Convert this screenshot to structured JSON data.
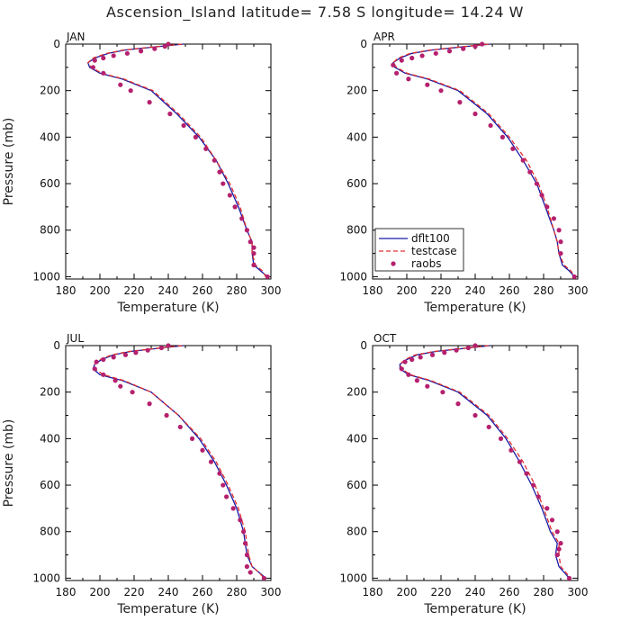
{
  "figure": {
    "title": "Ascension_Island   latitude= 7.58 S longitude= 14.24 W"
  },
  "colors": {
    "dflt100": "#1a1aa6",
    "testcase": "#e03030",
    "raobs": "#b5206e",
    "axes": "#000000"
  },
  "legend": {
    "panel": "APR",
    "entries": [
      {
        "label": "dflt100",
        "style": "solid"
      },
      {
        "label": "testcase",
        "style": "dashed"
      },
      {
        "label": "raobs",
        "style": "dots"
      }
    ]
  },
  "chart_data": [
    {
      "type": "line",
      "panel": "JAN",
      "xlabel": "Temperature (K)",
      "ylabel": "Pressure (mb)",
      "xlim": [
        180,
        300
      ],
      "ylim": [
        1010,
        0
      ],
      "xticks": [
        180,
        200,
        220,
        240,
        260,
        280,
        300
      ],
      "yticks": [
        0,
        200,
        400,
        600,
        800,
        1000
      ],
      "series": [
        {
          "name": "dflt100",
          "x": [
            249,
            235,
            215,
            205,
            197,
            193,
            194,
            200,
            213,
            230,
            245,
            258,
            268,
            275,
            281,
            286,
            289,
            289,
            290,
            294,
            298
          ],
          "y": [
            0,
            10,
            25,
            40,
            60,
            80,
            100,
            125,
            150,
            200,
            300,
            400,
            500,
            600,
            700,
            800,
            850,
            900,
            950,
            975,
            1000
          ]
        },
        {
          "name": "testcase",
          "x": [
            248,
            234,
            214,
            204,
            196,
            193,
            195,
            201,
            214,
            231,
            246,
            259,
            268,
            276,
            282,
            286,
            289,
            289,
            291,
            295,
            297
          ],
          "y": [
            0,
            10,
            25,
            40,
            60,
            80,
            100,
            125,
            150,
            200,
            300,
            400,
            500,
            600,
            700,
            800,
            850,
            900,
            950,
            975,
            1000
          ]
        },
        {
          "name": "raobs",
          "x": [
            240,
            238,
            232,
            224,
            216,
            208,
            202,
            197,
            196,
            202,
            212,
            218,
            229,
            241,
            249,
            256,
            262,
            267,
            270,
            272,
            276,
            279,
            283,
            286,
            288,
            290,
            290,
            290,
            298
          ],
          "y": [
            0,
            10,
            20,
            30,
            40,
            50,
            60,
            70,
            100,
            125,
            175,
            200,
            250,
            300,
            350,
            400,
            450,
            500,
            550,
            600,
            650,
            700,
            750,
            800,
            850,
            875,
            900,
            950,
            1000
          ]
        }
      ]
    },
    {
      "type": "line",
      "panel": "APR",
      "xlabel": "Temperature (K)",
      "ylabel": "",
      "xlim": [
        180,
        300
      ],
      "ylim": [
        1010,
        0
      ],
      "xticks": [
        180,
        200,
        220,
        240,
        260,
        280,
        300
      ],
      "yticks": [
        0,
        200,
        400,
        600,
        800,
        1000
      ],
      "series": [
        {
          "name": "dflt100",
          "x": [
            249,
            235,
            215,
            203,
            196,
            192,
            193,
            199,
            212,
            230,
            247,
            259,
            268,
            276,
            281,
            286,
            288,
            289,
            291,
            295,
            298
          ],
          "y": [
            0,
            10,
            25,
            40,
            60,
            80,
            100,
            125,
            150,
            200,
            300,
            400,
            500,
            600,
            700,
            800,
            850,
            900,
            950,
            975,
            1000
          ]
        },
        {
          "name": "testcase",
          "x": [
            248,
            234,
            214,
            202,
            195,
            192,
            194,
            200,
            213,
            231,
            248,
            260,
            270,
            277,
            282,
            286,
            288,
            289,
            292,
            296,
            298
          ],
          "y": [
            0,
            10,
            25,
            40,
            60,
            80,
            100,
            125,
            150,
            200,
            300,
            400,
            500,
            600,
            700,
            800,
            850,
            900,
            950,
            975,
            1000
          ]
        },
        {
          "name": "raobs",
          "x": [
            244,
            240,
            233,
            225,
            217,
            209,
            203,
            197,
            192,
            194,
            201,
            212,
            220,
            231,
            240,
            249,
            256,
            262,
            268,
            272,
            276,
            279,
            282,
            286,
            289,
            290,
            290,
            298
          ],
          "y": [
            0,
            10,
            20,
            30,
            40,
            50,
            60,
            70,
            90,
            125,
            150,
            175,
            200,
            250,
            300,
            350,
            400,
            450,
            500,
            550,
            600,
            650,
            700,
            750,
            800,
            850,
            900,
            1000
          ]
        }
      ]
    },
    {
      "type": "line",
      "panel": "JUL",
      "xlabel": "Temperature (K)",
      "ylabel": "Pressure (mb)",
      "xlim": [
        180,
        300
      ],
      "ylim": [
        1010,
        0
      ],
      "xticks": [
        180,
        200,
        220,
        240,
        260,
        280,
        300
      ],
      "yticks": [
        0,
        200,
        400,
        600,
        800,
        1000
      ],
      "series": [
        {
          "name": "dflt100",
          "x": [
            249,
            236,
            218,
            208,
            201,
            197,
            196,
            200,
            213,
            230,
            246,
            258,
            267,
            274,
            280,
            284,
            285,
            286,
            289,
            293,
            297
          ],
          "y": [
            0,
            10,
            25,
            40,
            60,
            80,
            100,
            125,
            150,
            200,
            300,
            400,
            500,
            600,
            700,
            800,
            850,
            900,
            950,
            975,
            1000
          ]
        },
        {
          "name": "testcase",
          "x": [
            248,
            235,
            217,
            207,
            200,
            197,
            197,
            202,
            214,
            230,
            246,
            259,
            268,
            275,
            281,
            285,
            286,
            287,
            289,
            293,
            296
          ],
          "y": [
            0,
            10,
            25,
            40,
            60,
            80,
            100,
            125,
            150,
            200,
            300,
            400,
            500,
            600,
            700,
            800,
            850,
            900,
            950,
            975,
            1000
          ]
        },
        {
          "name": "raobs",
          "x": [
            240,
            236,
            228,
            221,
            215,
            208,
            202,
            198,
            197,
            202,
            209,
            212,
            219,
            229,
            239,
            247,
            254,
            260,
            265,
            270,
            272,
            274,
            278,
            282,
            284,
            285,
            286,
            286,
            288,
            296
          ],
          "y": [
            0,
            10,
            20,
            30,
            40,
            50,
            60,
            70,
            100,
            125,
            150,
            175,
            200,
            250,
            300,
            350,
            400,
            450,
            500,
            550,
            600,
            650,
            700,
            750,
            800,
            850,
            900,
            950,
            975,
            1000
          ]
        }
      ]
    },
    {
      "type": "line",
      "panel": "OCT",
      "xlabel": "Temperature (K)",
      "ylabel": "",
      "xlim": [
        180,
        300
      ],
      "ylim": [
        1010,
        0
      ],
      "xticks": [
        180,
        200,
        220,
        240,
        260,
        280,
        300
      ],
      "yticks": [
        0,
        200,
        400,
        600,
        800,
        1000
      ],
      "series": [
        {
          "name": "dflt100",
          "x": [
            249,
            236,
            217,
            206,
            200,
            196,
            196,
            201,
            213,
            230,
            247,
            258,
            266,
            273,
            279,
            284,
            288,
            287,
            289,
            292,
            295
          ],
          "y": [
            0,
            10,
            25,
            40,
            60,
            80,
            100,
            125,
            150,
            200,
            300,
            400,
            500,
            600,
            700,
            800,
            850,
            900,
            950,
            975,
            1000
          ]
        },
        {
          "name": "testcase",
          "x": [
            248,
            235,
            216,
            205,
            199,
            196,
            197,
            202,
            214,
            231,
            248,
            259,
            268,
            275,
            280,
            285,
            289,
            289,
            290,
            293,
            296
          ],
          "y": [
            0,
            10,
            25,
            40,
            60,
            80,
            100,
            125,
            150,
            200,
            300,
            400,
            500,
            600,
            700,
            800,
            850,
            900,
            950,
            975,
            1000
          ]
        },
        {
          "name": "raobs",
          "x": [
            240,
            236,
            229,
            222,
            215,
            208,
            203,
            199,
            197,
            201,
            206,
            212,
            221,
            230,
            240,
            248,
            255,
            261,
            266,
            270,
            274,
            277,
            282,
            285,
            288,
            290,
            289,
            288,
            295
          ],
          "y": [
            0,
            10,
            20,
            30,
            40,
            50,
            60,
            70,
            100,
            125,
            150,
            175,
            200,
            250,
            300,
            350,
            400,
            450,
            500,
            550,
            600,
            650,
            700,
            750,
            800,
            850,
            875,
            900,
            1000
          ]
        }
      ]
    }
  ]
}
